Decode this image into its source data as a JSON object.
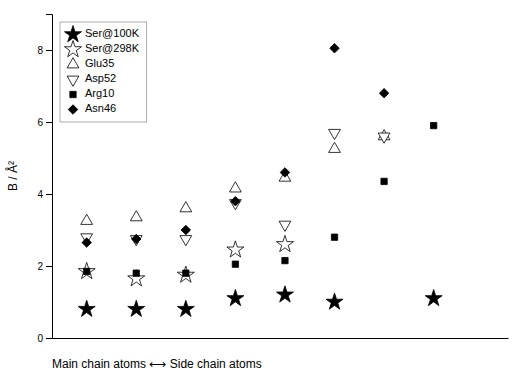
{
  "chart_data": {
    "type": "scatter",
    "x_label": "Main chain atoms ⟷ Side chain atoms",
    "y_label": "B / Å²",
    "xlim": [
      0.3,
      9.5
    ],
    "ylim": [
      0,
      9
    ],
    "yticks": [
      0,
      2,
      4,
      6,
      8
    ],
    "tick_labels": "y",
    "grid": false,
    "legend": "upper-left",
    "series": [
      {
        "name": "Ser@100K",
        "marker": "star",
        "color": "black",
        "x": [
          1,
          2,
          3,
          4,
          5,
          6,
          8
        ],
        "values": [
          0.8,
          0.8,
          0.8,
          1.1,
          1.2,
          1.0,
          1.1
        ]
      },
      {
        "name": "Ser@298K",
        "marker": "star-open",
        "color": "black",
        "x": [
          1,
          2,
          3,
          4,
          5
        ],
        "values": [
          1.85,
          1.65,
          1.75,
          2.45,
          2.6
        ]
      },
      {
        "name": "Glu35",
        "marker": "triangle-up-open",
        "color": "black",
        "x": [
          1,
          2,
          3,
          4,
          5,
          6,
          7
        ],
        "values": [
          3.25,
          3.35,
          3.6,
          4.15,
          4.45,
          5.25,
          5.6
        ]
      },
      {
        "name": "Asp52",
        "marker": "triangle-down-open",
        "color": "black",
        "x": [
          1,
          2,
          3,
          4,
          5,
          6,
          7
        ],
        "values": [
          2.8,
          2.75,
          2.75,
          3.75,
          3.15,
          5.7,
          5.6
        ]
      },
      {
        "name": "Arg10",
        "marker": "square",
        "color": "black",
        "x": [
          1,
          2,
          3,
          4,
          5,
          6,
          7,
          8
        ],
        "values": [
          1.85,
          1.8,
          1.8,
          2.05,
          2.15,
          2.8,
          4.35,
          5.9
        ]
      },
      {
        "name": "Asn46",
        "marker": "diamond",
        "color": "black",
        "x": [
          1,
          2,
          3,
          4,
          5,
          6,
          7
        ],
        "values": [
          2.65,
          2.75,
          3.0,
          3.8,
          4.6,
          8.05,
          6.8
        ]
      }
    ]
  }
}
